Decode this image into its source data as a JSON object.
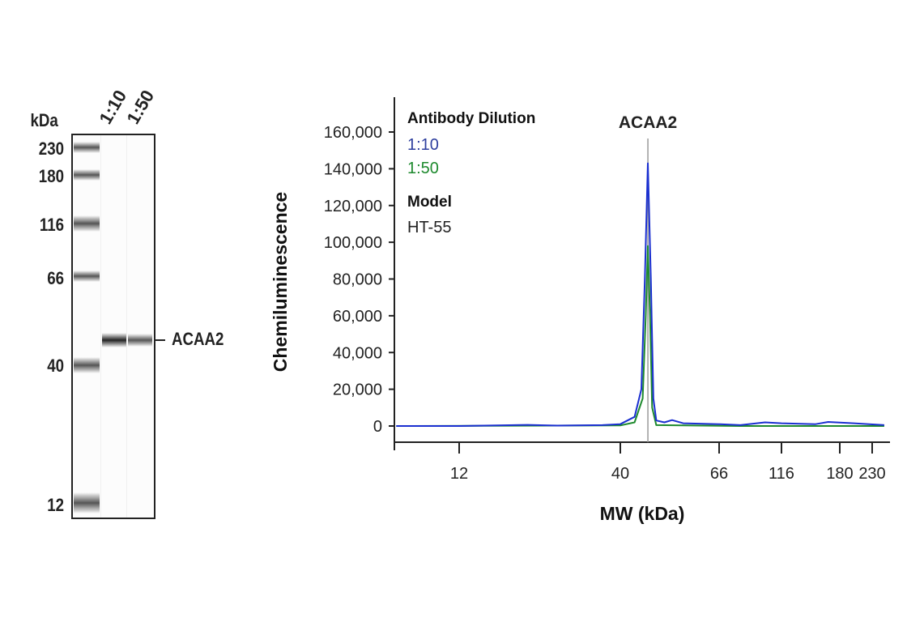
{
  "gel": {
    "unit_label": "kDa",
    "lane_labels": [
      "1:10",
      "1:50"
    ],
    "markers": [
      "230",
      "180",
      "116",
      "66",
      "40",
      "12"
    ],
    "band_label": "ACAA2"
  },
  "chart_data": {
    "type": "line",
    "title": "",
    "xlabel": "MW (kDa)",
    "ylabel": "Chemiluminescence",
    "x_ticks": [
      "12",
      "40",
      "66",
      "116",
      "180",
      "230"
    ],
    "y_ticks": [
      "0",
      "20,000",
      "40,000",
      "60,000",
      "80,000",
      "100,000",
      "120,000",
      "140,000",
      "160,000"
    ],
    "ylim": [
      0,
      160000
    ],
    "xlim": [
      7.5,
      252
    ],
    "grid": false,
    "peak_annotation": {
      "label": "ACAA2",
      "x": 46
    },
    "legend": {
      "position": "top-left",
      "title": "Antibody Dilution",
      "model_title": "Model",
      "model_value": "HT-55"
    },
    "series": [
      {
        "name": "1:10",
        "color": "#1a2fd0",
        "label_color": "#2e3f9e",
        "points": [
          [
            7.5,
            0
          ],
          [
            12,
            0
          ],
          [
            20,
            600
          ],
          [
            25,
            200
          ],
          [
            35,
            500
          ],
          [
            40,
            1000
          ],
          [
            43,
            5000
          ],
          [
            44.5,
            20000
          ],
          [
            45.3,
            80000
          ],
          [
            46,
            143000
          ],
          [
            46.7,
            80000
          ],
          [
            47.3,
            15000
          ],
          [
            48,
            3000
          ],
          [
            50,
            2000
          ],
          [
            52,
            3200
          ],
          [
            55,
            1500
          ],
          [
            66,
            1000
          ],
          [
            80,
            500
          ],
          [
            100,
            2000
          ],
          [
            116,
            1500
          ],
          [
            150,
            1000
          ],
          [
            165,
            2200
          ],
          [
            200,
            1500
          ],
          [
            252,
            500
          ]
        ]
      },
      {
        "name": "1:50",
        "color": "#1e8a2e",
        "label_color": "#1e8a2e",
        "points": [
          [
            7.5,
            0
          ],
          [
            40,
            300
          ],
          [
            43,
            2000
          ],
          [
            44.8,
            15000
          ],
          [
            45.5,
            60000
          ],
          [
            46,
            98000
          ],
          [
            46.5,
            60000
          ],
          [
            47,
            10000
          ],
          [
            48,
            500
          ],
          [
            80,
            0
          ],
          [
            252,
            0
          ]
        ]
      }
    ]
  }
}
